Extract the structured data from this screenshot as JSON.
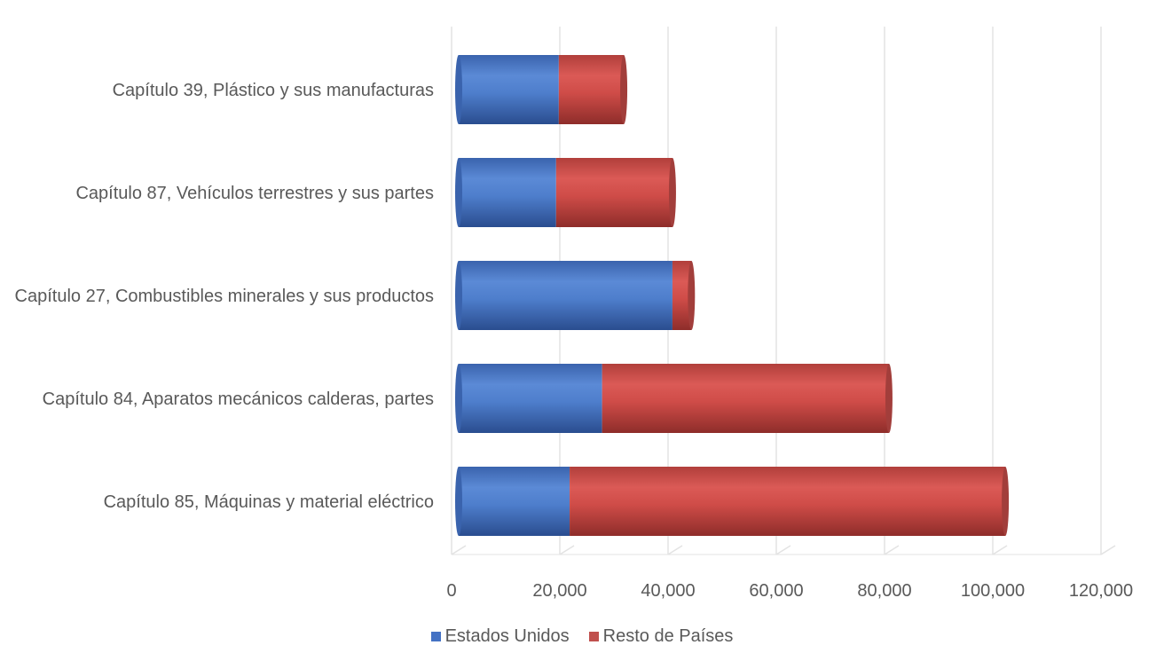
{
  "chart_data": {
    "type": "bar",
    "orientation": "horizontal",
    "stacked": true,
    "style": "3d-cylinder",
    "categories": [
      "Capítulo 85, Máquinas y material eléctrico",
      "Capítulo 84, Aparatos mecánicos calderas, partes",
      "Capítulo 27, Combustibles minerales y sus productos",
      "Capítulo 87, Vehículos terrestres y sus partes",
      "Capítulo 39, Plástico y sus manufacturas"
    ],
    "series": [
      {
        "name": "Estados Unidos",
        "color": "#4472C4",
        "values": [
          20500,
          26500,
          39500,
          18000,
          18500
        ]
      },
      {
        "name": "Resto de Países",
        "color": "#C0504D",
        "values": [
          80500,
          53000,
          3500,
          21500,
          12000
        ]
      }
    ],
    "xlim": [
      0,
      120000
    ],
    "xticks": [
      "0",
      "20,000",
      "40,000",
      "60,000",
      "80,000",
      "100,000",
      "120,000"
    ],
    "grid": "vertical",
    "legend_position": "bottom"
  }
}
